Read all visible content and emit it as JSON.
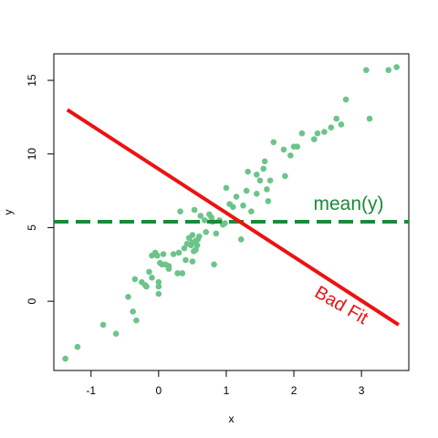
{
  "chart_data": {
    "type": "scatter",
    "title": "",
    "xlabel": "x",
    "ylabel": "y",
    "xlim": [
      -1.55,
      3.7
    ],
    "ylim": [
      -4.7,
      16.8
    ],
    "x_ticks": [
      -1,
      0,
      1,
      2,
      3
    ],
    "y_ticks": [
      0,
      5,
      10,
      15
    ],
    "grid": false,
    "colors": {
      "points": "#6cc48a",
      "bad_fit": "#ee1111",
      "mean": "#1a8a3a"
    },
    "points": [
      [
        -1.38,
        -3.9
      ],
      [
        -1.2,
        -3.1
      ],
      [
        -0.82,
        -1.6
      ],
      [
        -0.63,
        -2.2
      ],
      [
        -0.45,
        0.3
      ],
      [
        -0.38,
        -0.7
      ],
      [
        -0.35,
        1.5
      ],
      [
        -0.33,
        -1.3
      ],
      [
        -0.25,
        1.3
      ],
      [
        -0.2,
        1.1
      ],
      [
        -0.18,
        1.0
      ],
      [
        -0.14,
        2.0
      ],
      [
        -0.1,
        1.6
      ],
      [
        -0.1,
        3.1
      ],
      [
        -0.05,
        3.3
      ],
      [
        -0.02,
        3.1
      ],
      [
        0.0,
        1.0
      ],
      [
        0.0,
        0.5
      ],
      [
        0.0,
        1.3
      ],
      [
        0.02,
        2.6
      ],
      [
        0.05,
        2.5
      ],
      [
        0.07,
        3.2
      ],
      [
        0.1,
        2.5
      ],
      [
        0.15,
        2.2
      ],
      [
        0.15,
        2.4
      ],
      [
        0.22,
        3.2
      ],
      [
        0.28,
        1.9
      ],
      [
        0.3,
        3.3
      ],
      [
        0.32,
        6.1
      ],
      [
        0.35,
        1.9
      ],
      [
        0.38,
        3.6
      ],
      [
        0.4,
        2.8
      ],
      [
        0.42,
        3.9
      ],
      [
        0.45,
        4.3
      ],
      [
        0.48,
        3.8
      ],
      [
        0.5,
        4.0
      ],
      [
        0.5,
        2.7
      ],
      [
        0.5,
        4.5
      ],
      [
        0.52,
        3.4
      ],
      [
        0.53,
        6.2
      ],
      [
        0.55,
        4.1
      ],
      [
        0.55,
        3.5
      ],
      [
        0.57,
        3.8
      ],
      [
        0.58,
        4.2
      ],
      [
        0.6,
        4.4
      ],
      [
        0.62,
        5.8
      ],
      [
        0.68,
        5.5
      ],
      [
        0.7,
        4.7
      ],
      [
        0.75,
        5.9
      ],
      [
        0.78,
        5.7
      ],
      [
        0.8,
        5.4
      ],
      [
        0.82,
        2.5
      ],
      [
        0.85,
        4.6
      ],
      [
        0.9,
        5.5
      ],
      [
        0.95,
        5.2
      ],
      [
        0.98,
        5.3
      ],
      [
        1.0,
        7.7
      ],
      [
        1.05,
        6.6
      ],
      [
        1.1,
        6.4
      ],
      [
        1.15,
        7.1
      ],
      [
        1.22,
        4.2
      ],
      [
        1.25,
        6.5
      ],
      [
        1.3,
        7.5
      ],
      [
        1.32,
        8.8
      ],
      [
        1.37,
        6.1
      ],
      [
        1.45,
        8.6
      ],
      [
        1.45,
        7.3
      ],
      [
        1.5,
        8.2
      ],
      [
        1.55,
        9.0
      ],
      [
        1.57,
        9.5
      ],
      [
        1.6,
        7.6
      ],
      [
        1.62,
        6.8
      ],
      [
        1.65,
        8.2
      ],
      [
        1.7,
        10.8
      ],
      [
        1.85,
        10.3
      ],
      [
        1.87,
        8.5
      ],
      [
        1.95,
        9.9
      ],
      [
        2.0,
        10.5
      ],
      [
        2.05,
        10.5
      ],
      [
        2.12,
        11.4
      ],
      [
        2.3,
        11.0
      ],
      [
        2.35,
        11.4
      ],
      [
        2.45,
        11.5
      ],
      [
        2.55,
        11.8
      ],
      [
        2.63,
        12.4
      ],
      [
        2.7,
        12.0
      ],
      [
        2.77,
        13.7
      ],
      [
        3.07,
        15.7
      ],
      [
        3.12,
        12.4
      ],
      [
        3.4,
        15.7
      ],
      [
        3.52,
        15.9
      ]
    ],
    "bad_fit": {
      "label": "Bad Fit",
      "start": [
        -1.35,
        13.0
      ],
      "end": [
        3.55,
        -1.6
      ]
    },
    "mean_line": {
      "label": "mean(y)",
      "y": 5.4
    }
  }
}
